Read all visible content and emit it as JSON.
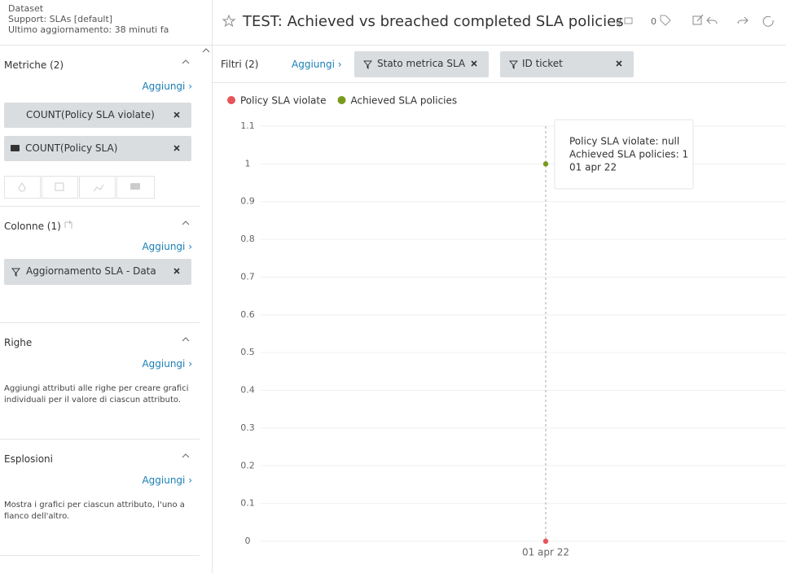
{
  "dataset": {
    "label": "Dataset",
    "name": "Support: SLAs [default]",
    "updated": "Ultimo aggiornamento: 38 minuti fa"
  },
  "sidebar": {
    "metrics": {
      "title": "Metriche (2)",
      "add": "Aggiungi ›",
      "items": [
        "COUNT(Policy SLA violate)",
        "COUNT(Policy SLA)"
      ]
    },
    "columns": {
      "title": "Colonne (1)",
      "add": "Aggiungi ›",
      "items": [
        "Aggiornamento SLA - Data"
      ]
    },
    "rows": {
      "title": "Righe",
      "add": "Aggiungi ›",
      "description": "Aggiungi attributi alle righe per creare grafici individuali per il valore di ciascun attributo."
    },
    "explosions": {
      "title": "Esplosioni",
      "add": "Aggiungi ›",
      "description": "Mostra i grafici per ciascun attributo, l'uno a fianco dell'altro."
    }
  },
  "header": {
    "title": "TEST: Achieved vs breached completed SLA policies",
    "count_a": "0",
    "count_b": "0"
  },
  "filters": {
    "label": "Filtri (2)",
    "add": "Aggiungi ›",
    "chips": [
      "Stato metrica SLA",
      "ID ticket"
    ]
  },
  "chart_data": {
    "type": "line",
    "categories": [
      "01 apr 22"
    ],
    "series": [
      {
        "name": "Policy SLA violate",
        "color": "#e8545a",
        "values": [
          0
        ]
      },
      {
        "name": "Achieved SLA policies",
        "color": "#7a9a1c",
        "values": [
          1
        ]
      }
    ],
    "ylim": [
      0,
      1.1
    ],
    "yticks": [
      0,
      0.1,
      0.2,
      0.3,
      0.4,
      0.5,
      0.6,
      0.7,
      0.8,
      0.9,
      1,
      1.1
    ],
    "grid": true,
    "tooltip": [
      "Policy SLA violate: null",
      "Achieved SLA policies: 1",
      "01 apr 22"
    ]
  }
}
